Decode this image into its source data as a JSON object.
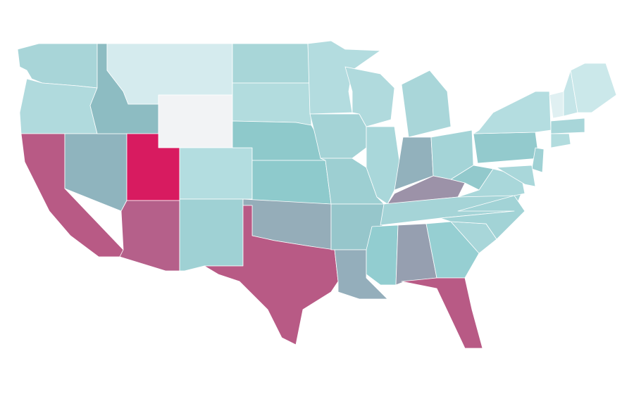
{
  "map": {
    "regions": [
      {
        "color": "#a8d5d8"
      },
      {
        "color": "#b0dadd"
      },
      {
        "color": "#b85a85"
      },
      {
        "color": "#8fb4be"
      },
      {
        "color": "#8dbcc2"
      },
      {
        "color": "#d5ebee"
      },
      {
        "color": "#f2f3f5"
      },
      {
        "color": "#d81b60"
      },
      {
        "color": "#b5608a"
      },
      {
        "color": "#b3dde0"
      },
      {
        "color": "#9fd1d4"
      },
      {
        "color": "#a8d6d8"
      },
      {
        "color": "#b2dcde"
      },
      {
        "color": "#8ec9cb"
      },
      {
        "color": "#8ecacc"
      },
      {
        "color": "#95adb9"
      },
      {
        "color": "#b85a85"
      },
      {
        "color": "#b3dcdf"
      },
      {
        "color": "#a4d3d6"
      },
      {
        "color": "#9dcfd2"
      },
      {
        "color": "#96c6cb"
      },
      {
        "color": "#94aebb"
      },
      {
        "color": "#b0dadd"
      },
      {
        "color": "#a9d7da"
      },
      {
        "color": "#a9d6d9"
      },
      {
        "color": "#92b1bc"
      },
      {
        "color": "#a4d4d7"
      },
      {
        "color": "#9c92a8"
      },
      {
        "color": "#a5d4d7"
      },
      {
        "color": "#92cdd0"
      },
      {
        "color": "#969fb0"
      },
      {
        "color": "#96cfd2"
      },
      {
        "color": "#b85a85"
      },
      {
        "color": "#a8d6d9"
      },
      {
        "color": "#a2d3d6"
      },
      {
        "color": "#a9d7da"
      },
      {
        "color": "#92c9cc"
      },
      {
        "color": "#93cacd"
      },
      {
        "color": "#b4dde0"
      },
      {
        "color": "#9fd1d4"
      },
      {
        "color": "#a9d7da"
      },
      {
        "color": "#e0f0f2"
      },
      {
        "color": "#c5e5e8"
      },
      {
        "color": "#cbe8ea"
      },
      {
        "color": "#a8d6d9"
      },
      {
        "color": "#b2dcde"
      }
    ]
  }
}
